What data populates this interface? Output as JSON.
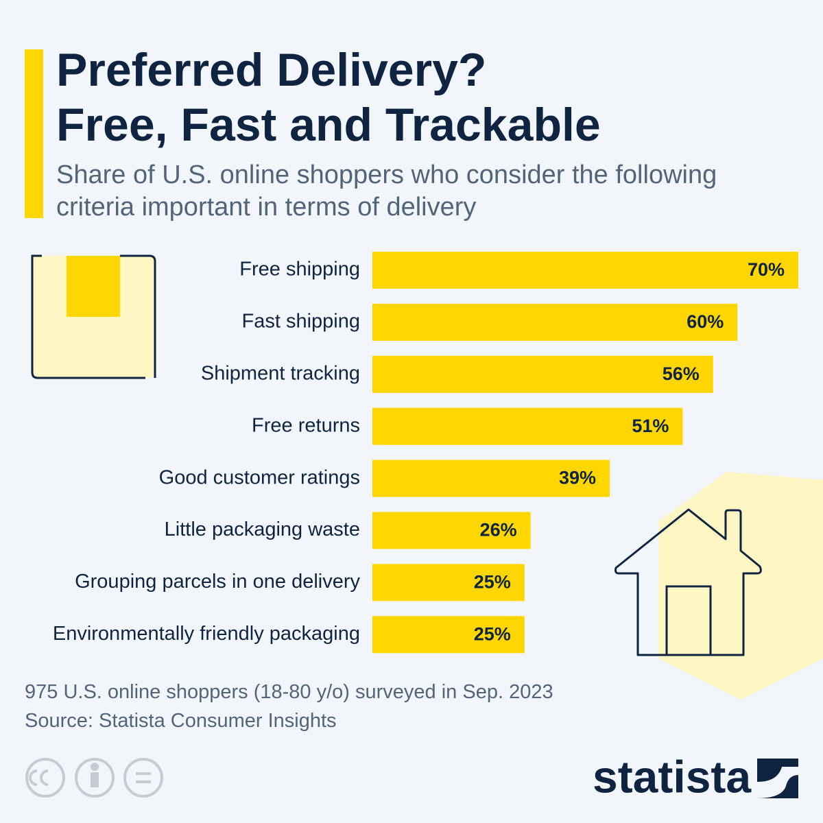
{
  "chart_data": {
    "type": "bar",
    "orientation": "horizontal",
    "title": [
      "Preferred Delivery?",
      "Free, Fast and Trackable"
    ],
    "subtitle": "Share of U.S. online shoppers who consider the following criteria important in terms of delivery",
    "categories": [
      "Free shipping",
      "Fast shipping",
      "Shipment tracking",
      "Free returns",
      "Good customer ratings",
      "Little packaging waste",
      "Grouping parcels in one delivery",
      "Environmentally friendly packaging"
    ],
    "values": [
      70,
      60,
      56,
      51,
      39,
      26,
      25,
      25
    ],
    "value_labels": [
      "70%",
      "60%",
      "56%",
      "51%",
      "39%",
      "26%",
      "25%",
      "25%"
    ],
    "color": "#ffd600",
    "notes": [
      "975 U.S. online shoppers (18-80 y/o) surveyed in Sep. 2023",
      "Source: Statista Consumer Insights"
    ],
    "brand": "statista"
  }
}
